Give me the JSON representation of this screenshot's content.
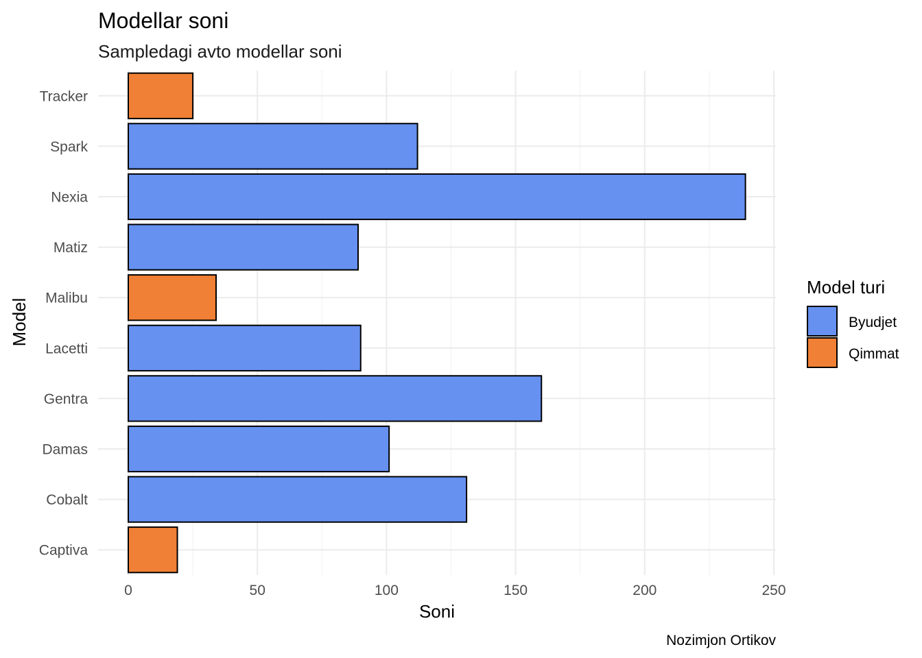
{
  "chart_data": {
    "type": "bar",
    "orientation": "horizontal",
    "title": "Modellar soni",
    "subtitle": "Sampledagi avto modellar soni",
    "xlabel": "Soni",
    "ylabel": "Model",
    "caption": "Nozimjon Ortikov",
    "xlim": [
      0,
      250
    ],
    "x_ticks": [
      0,
      50,
      100,
      150,
      200,
      250
    ],
    "grid": true,
    "legend": {
      "title": "Model turi",
      "position": "right",
      "entries": [
        {
          "label": "Byudjet",
          "color": "#6691F0"
        },
        {
          "label": "Qimmat",
          "color": "#F08035"
        }
      ]
    },
    "categories": [
      "Captiva",
      "Cobalt",
      "Damas",
      "Gentra",
      "Lacetti",
      "Malibu",
      "Matiz",
      "Nexia",
      "Spark",
      "Tracker"
    ],
    "values": [
      19,
      131,
      101,
      160,
      90,
      34,
      89,
      239,
      112,
      25
    ],
    "groups": [
      "Qimmat",
      "Byudjet",
      "Byudjet",
      "Byudjet",
      "Byudjet",
      "Qimmat",
      "Byudjet",
      "Byudjet",
      "Byudjet",
      "Qimmat"
    ]
  }
}
